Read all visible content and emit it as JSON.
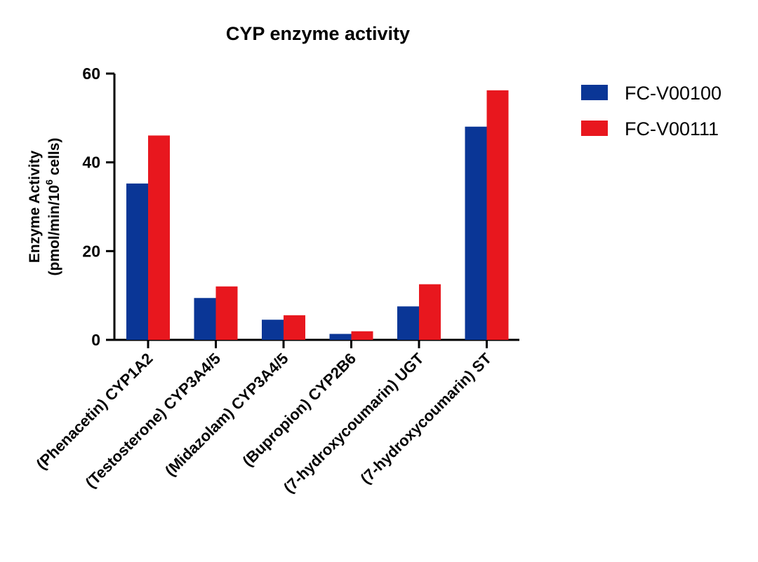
{
  "chart_data": {
    "type": "bar",
    "title": "CYP enzyme activity",
    "ylabel_line1": "Enzyme Activity",
    "ylabel_line2_pre": "(pmol/min/10",
    "ylabel_line2_sup": "6",
    "ylabel_line2_post": " cells)",
    "xlabel": "",
    "ylim": [
      0,
      60
    ],
    "yticks": [
      0,
      20,
      40,
      60
    ],
    "categories": [
      "(Phenacetin) CYP1A2",
      "(Testosterone) CYP3A4/5",
      "(Midazolam) CYP3A4/5",
      "(Bupropion) CYP2B6",
      "(7-hydroxycoumarin) UGT",
      "(7-hydroxycoumarin) ST"
    ],
    "series": [
      {
        "name": "FC-V00100",
        "color": "#0a3696",
        "values": [
          35,
          9.2,
          4.3,
          1.1,
          7.3,
          47.8
        ]
      },
      {
        "name": "FC-V00111",
        "color": "#e8171e",
        "values": [
          45.8,
          11.8,
          5.3,
          1.7,
          12.3,
          56
        ]
      }
    ],
    "legend_position": "top-right",
    "grid": false
  }
}
